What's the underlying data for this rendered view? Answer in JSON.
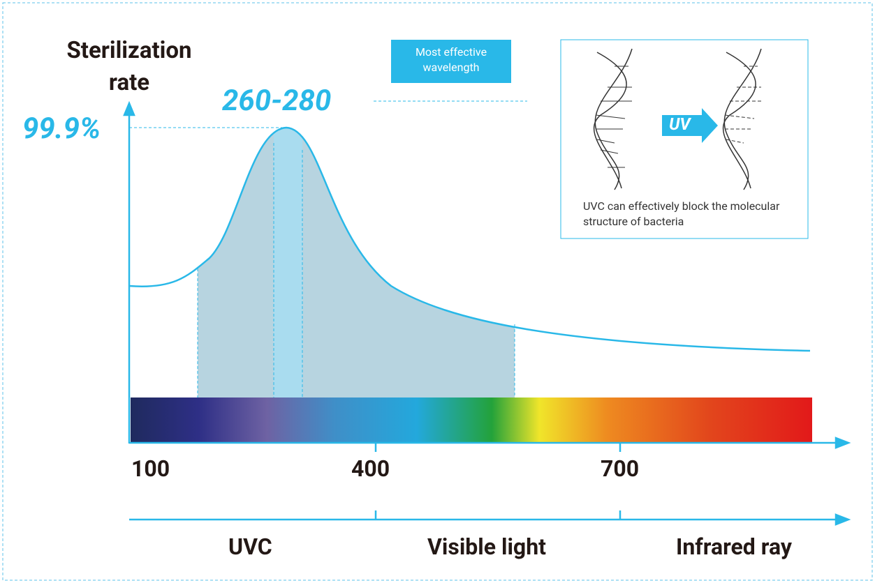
{
  "y_axis_title": "Sterilization rate",
  "peak_value": "99.9%",
  "peak_range": "260-280",
  "callout": "Most effective wavelength",
  "inset": {
    "arrow_label": "UV",
    "caption": "UVC can effectively block the molecular structure of bacteria"
  },
  "x_ticks": [
    "100",
    "400",
    "700"
  ],
  "regions": [
    "UVC",
    "Visible light",
    "Infrared ray"
  ]
}
